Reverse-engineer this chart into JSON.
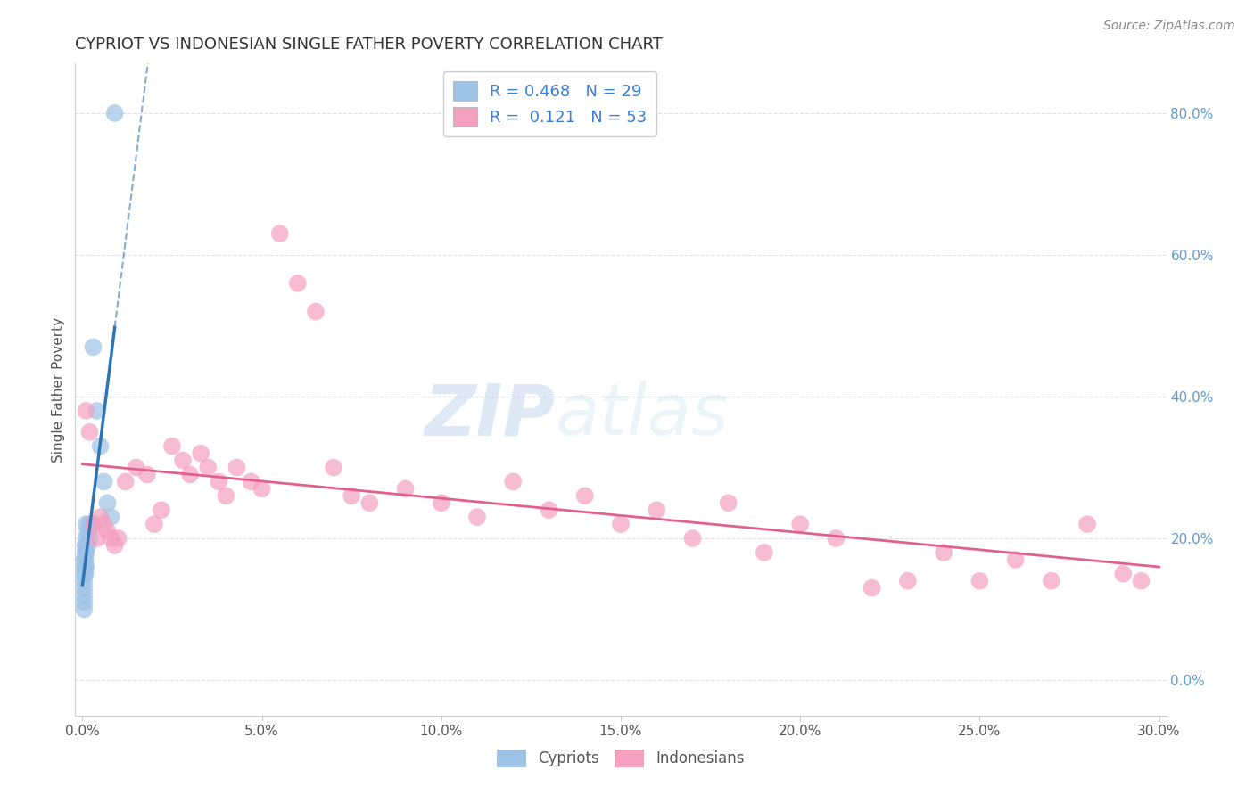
{
  "title": "CYPRIOT VS INDONESIAN SINGLE FATHER POVERTY CORRELATION CHART",
  "source": "Source: ZipAtlas.com",
  "ylabel": "Single Father Poverty",
  "xlim": [
    -0.002,
    0.302
  ],
  "ylim": [
    -0.05,
    0.87
  ],
  "xticks": [
    0.0,
    0.05,
    0.1,
    0.15,
    0.2,
    0.25,
    0.3
  ],
  "yticks_right": [
    0.0,
    0.2,
    0.4,
    0.6,
    0.8
  ],
  "cypriot_color": "#9DC3E6",
  "indonesian_color": "#F4A0BE",
  "cypriot_line_color": "#2E75B6",
  "indonesian_line_color": "#E06090",
  "legend_R_cypriot": "R = 0.468",
  "legend_N_cypriot": "N = 29",
  "legend_R_indonesian": "R =  0.121",
  "legend_N_indonesian": "N = 53",
  "legend_label_cypriot": "Cypriots",
  "legend_label_indonesian": "Indonesians",
  "cypriot_x": [
    0.0005,
    0.0005,
    0.0005,
    0.0005,
    0.0005,
    0.0005,
    0.0005,
    0.0005,
    0.0008,
    0.0008,
    0.0008,
    0.0008,
    0.0008,
    0.001,
    0.001,
    0.001,
    0.001,
    0.0015,
    0.0015,
    0.002,
    0.002,
    0.003,
    0.003,
    0.004,
    0.005,
    0.006,
    0.007,
    0.008,
    0.009
  ],
  "cypriot_y": [
    0.17,
    0.16,
    0.15,
    0.14,
    0.13,
    0.12,
    0.11,
    0.1,
    0.19,
    0.18,
    0.17,
    0.16,
    0.15,
    0.22,
    0.2,
    0.18,
    0.16,
    0.21,
    0.19,
    0.22,
    0.2,
    0.47,
    0.22,
    0.38,
    0.33,
    0.28,
    0.25,
    0.23,
    0.8
  ],
  "indonesian_x": [
    0.001,
    0.002,
    0.003,
    0.004,
    0.005,
    0.006,
    0.007,
    0.008,
    0.009,
    0.01,
    0.012,
    0.015,
    0.018,
    0.02,
    0.022,
    0.025,
    0.028,
    0.03,
    0.033,
    0.035,
    0.038,
    0.04,
    0.043,
    0.047,
    0.05,
    0.055,
    0.06,
    0.065,
    0.07,
    0.075,
    0.08,
    0.09,
    0.1,
    0.11,
    0.12,
    0.13,
    0.14,
    0.15,
    0.16,
    0.17,
    0.18,
    0.19,
    0.2,
    0.21,
    0.22,
    0.23,
    0.24,
    0.25,
    0.26,
    0.27,
    0.28,
    0.29,
    0.295
  ],
  "indonesian_y": [
    0.38,
    0.35,
    0.22,
    0.2,
    0.23,
    0.22,
    0.21,
    0.2,
    0.19,
    0.2,
    0.28,
    0.3,
    0.29,
    0.22,
    0.24,
    0.33,
    0.31,
    0.29,
    0.32,
    0.3,
    0.28,
    0.26,
    0.3,
    0.28,
    0.27,
    0.63,
    0.56,
    0.52,
    0.3,
    0.26,
    0.25,
    0.27,
    0.25,
    0.23,
    0.28,
    0.24,
    0.26,
    0.22,
    0.24,
    0.2,
    0.25,
    0.18,
    0.22,
    0.2,
    0.13,
    0.14,
    0.18,
    0.14,
    0.17,
    0.14,
    0.22,
    0.15,
    0.14
  ],
  "watermark_ZIP": "ZIP",
  "watermark_atlas": "atlas",
  "background_color": "#FFFFFF",
  "grid_color": "#E0E0E0"
}
